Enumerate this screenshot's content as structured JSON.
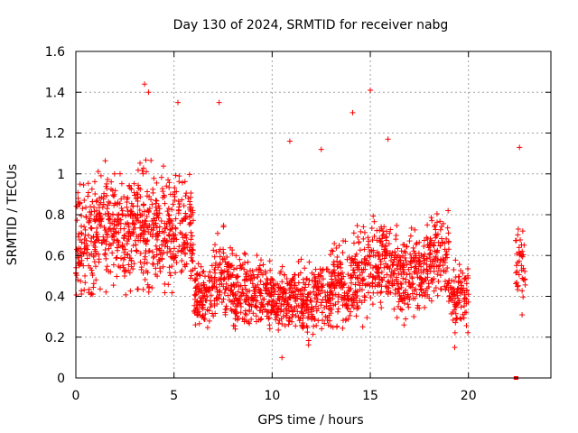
{
  "chart_data": {
    "type": "scatter",
    "title": "Day 130 of 2024, SRMTID for receiver nabg",
    "xlabel": "GPS time / hours",
    "ylabel": "SRMTID / TECUs",
    "xlim": [
      0,
      24.2
    ],
    "ylim": [
      0,
      1.6
    ],
    "xticks": [
      0,
      5,
      10,
      15,
      20
    ],
    "xtick_labels": [
      "0",
      "5",
      "10",
      "15",
      "20"
    ],
    "yticks": [
      0,
      0.2,
      0.4,
      0.6,
      0.8,
      1.0,
      1.2,
      1.4,
      1.6
    ],
    "ytick_labels": [
      "0",
      "0.2",
      "0.4",
      "0.6",
      "0.8",
      "1",
      "1.2",
      "1.4",
      "1.6"
    ],
    "grid": true,
    "marker": "+",
    "marker_color": "#ff0000",
    "series": [
      {
        "name": "SRMTID",
        "generator": "dense scatter of '+' markers; values estimated from the plot",
        "segments": [
          {
            "x_start": 0.0,
            "x_end": 1.0,
            "y_center": 0.68,
            "y_spread": 0.28,
            "count": 120
          },
          {
            "x_start": 1.0,
            "x_end": 2.0,
            "y_center": 0.75,
            "y_spread": 0.28,
            "count": 120
          },
          {
            "x_start": 2.0,
            "x_end": 3.0,
            "y_center": 0.72,
            "y_spread": 0.26,
            "count": 120
          },
          {
            "x_start": 3.0,
            "x_end": 4.0,
            "y_center": 0.74,
            "y_spread": 0.3,
            "count": 120
          },
          {
            "x_start": 4.0,
            "x_end": 5.0,
            "y_center": 0.7,
            "y_spread": 0.28,
            "count": 120
          },
          {
            "x_start": 5.0,
            "x_end": 6.0,
            "y_center": 0.7,
            "y_spread": 0.28,
            "count": 110
          },
          {
            "x_start": 6.0,
            "x_end": 7.0,
            "y_center": 0.4,
            "y_spread": 0.16,
            "count": 110
          },
          {
            "x_start": 7.0,
            "x_end": 8.0,
            "y_center": 0.48,
            "y_spread": 0.22,
            "count": 110
          },
          {
            "x_start": 8.0,
            "x_end": 9.0,
            "y_center": 0.42,
            "y_spread": 0.18,
            "count": 110
          },
          {
            "x_start": 9.0,
            "x_end": 10.0,
            "y_center": 0.42,
            "y_spread": 0.18,
            "count": 110
          },
          {
            "x_start": 10.0,
            "x_end": 11.0,
            "y_center": 0.38,
            "y_spread": 0.16,
            "count": 110
          },
          {
            "x_start": 11.0,
            "x_end": 12.0,
            "y_center": 0.38,
            "y_spread": 0.18,
            "count": 110
          },
          {
            "x_start": 12.0,
            "x_end": 13.0,
            "y_center": 0.4,
            "y_spread": 0.18,
            "count": 110
          },
          {
            "x_start": 13.0,
            "x_end": 14.0,
            "y_center": 0.45,
            "y_spread": 0.2,
            "count": 110
          },
          {
            "x_start": 14.0,
            "x_end": 15.0,
            "y_center": 0.52,
            "y_spread": 0.22,
            "count": 110
          },
          {
            "x_start": 15.0,
            "x_end": 16.0,
            "y_center": 0.58,
            "y_spread": 0.22,
            "count": 110
          },
          {
            "x_start": 16.0,
            "x_end": 17.0,
            "y_center": 0.48,
            "y_spread": 0.22,
            "count": 110
          },
          {
            "x_start": 17.0,
            "x_end": 18.0,
            "y_center": 0.52,
            "y_spread": 0.2,
            "count": 110
          },
          {
            "x_start": 18.0,
            "x_end": 19.0,
            "y_center": 0.6,
            "y_spread": 0.2,
            "count": 110
          },
          {
            "x_start": 19.0,
            "x_end": 20.0,
            "y_center": 0.4,
            "y_spread": 0.18,
            "count": 100
          },
          {
            "x_start": 22.4,
            "x_end": 22.9,
            "y_center": 0.55,
            "y_spread": 0.2,
            "count": 40
          }
        ],
        "outliers": [
          {
            "x": 3.5,
            "y": 1.44
          },
          {
            "x": 3.7,
            "y": 1.4
          },
          {
            "x": 5.2,
            "y": 1.35
          },
          {
            "x": 7.3,
            "y": 1.35
          },
          {
            "x": 15.0,
            "y": 1.41
          },
          {
            "x": 14.1,
            "y": 1.3
          },
          {
            "x": 10.9,
            "y": 1.16
          },
          {
            "x": 15.9,
            "y": 1.17
          },
          {
            "x": 22.6,
            "y": 1.13
          },
          {
            "x": 12.5,
            "y": 1.12
          },
          {
            "x": 19.3,
            "y": 0.15
          },
          {
            "x": 10.5,
            "y": 0.1
          }
        ],
        "zero_points": [
          {
            "x": 22.4,
            "y": 0.0
          },
          {
            "x": 22.45,
            "y": 0.0
          }
        ]
      }
    ]
  }
}
